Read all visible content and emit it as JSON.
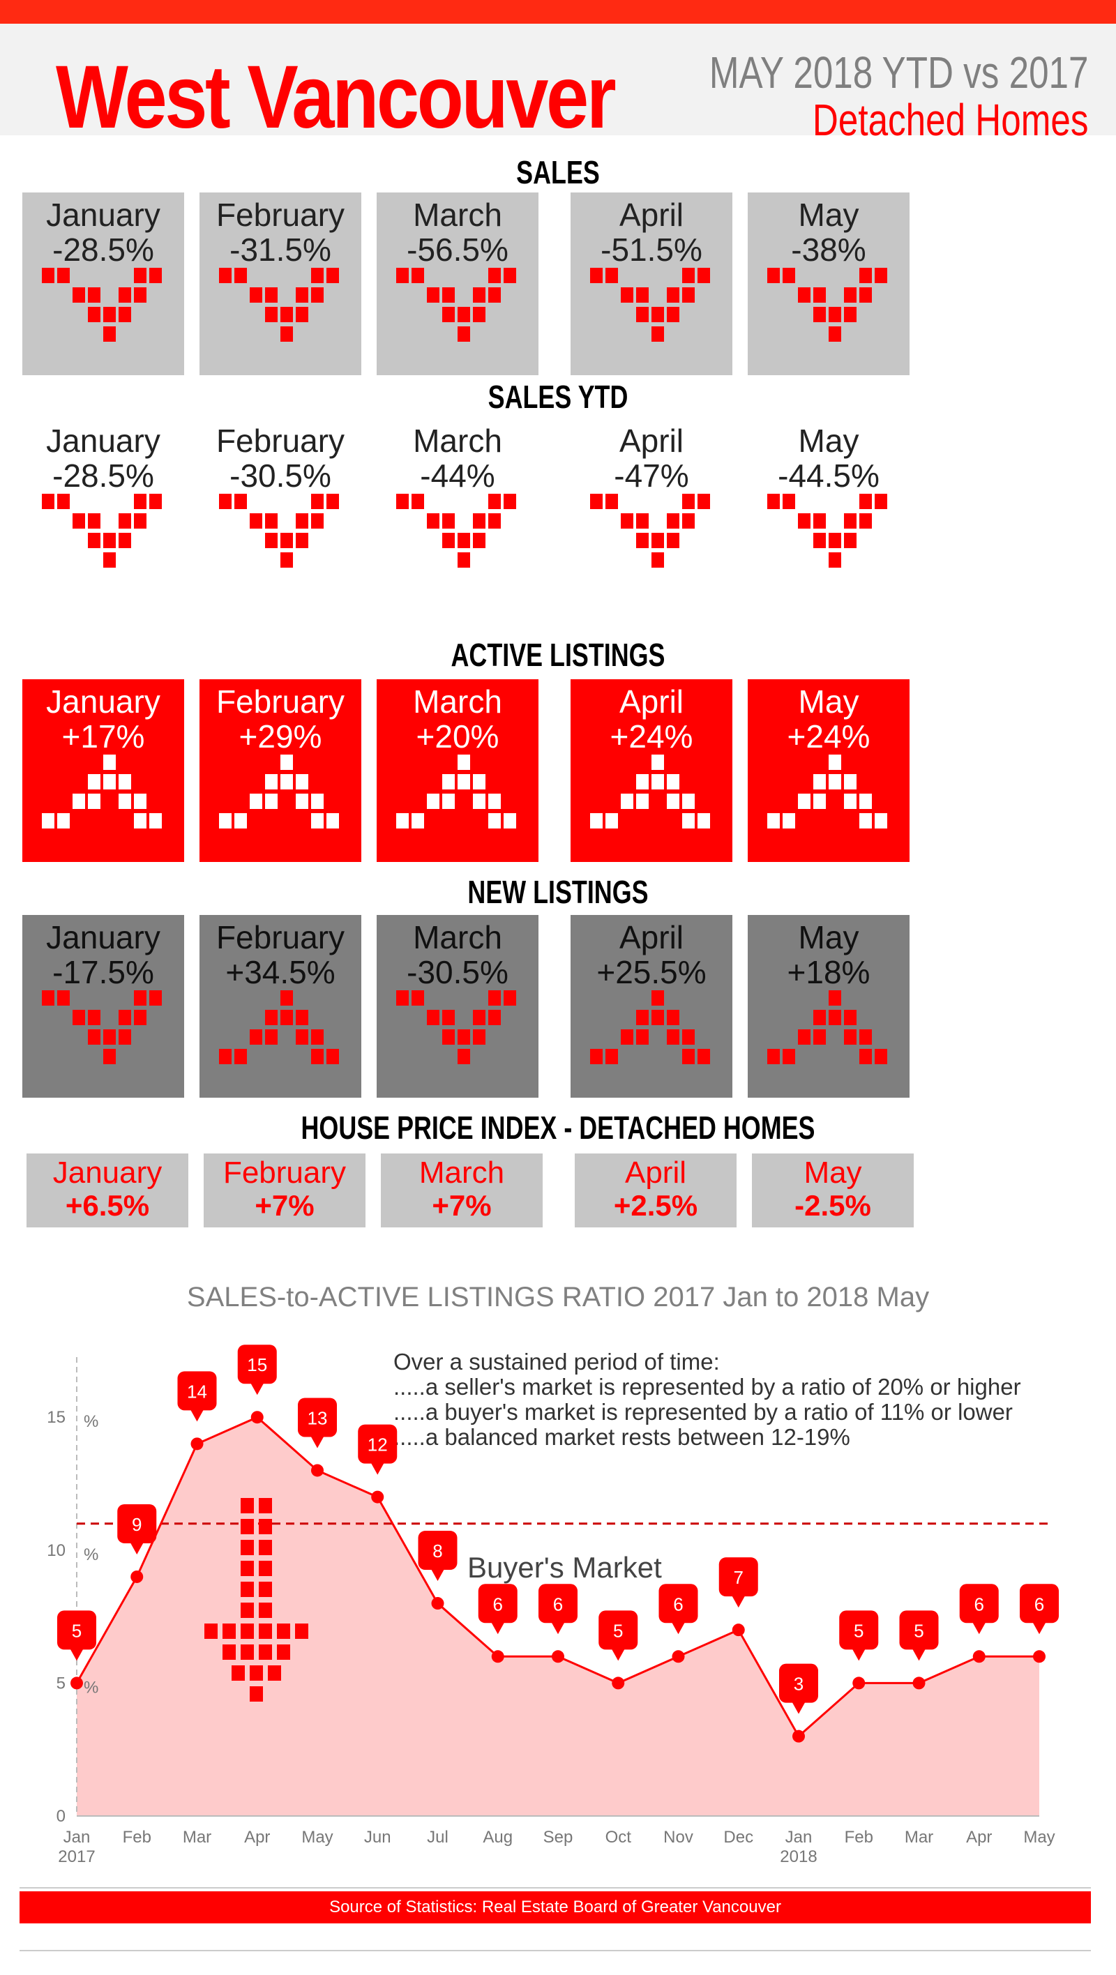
{
  "header": {
    "title": "West Vancouver",
    "subtitle_period": "MAY 2018 YTD vs 2017",
    "subtitle_type": "Detached Homes"
  },
  "colors": {
    "red": "#ff0000",
    "light_gray": "#c6c6c6",
    "dark_gray": "#7f7f7f",
    "pink_area": "#fecbcb"
  },
  "sections": {
    "sales": {
      "title": "SALES",
      "items": [
        {
          "month": "January",
          "value": "-28.5%",
          "trend": "down"
        },
        {
          "month": "February",
          "value": "-31.5%",
          "trend": "down"
        },
        {
          "month": "March",
          "value": "-56.5%",
          "trend": "down"
        },
        {
          "month": "April",
          "value": "-51.5%",
          "trend": "down"
        },
        {
          "month": "May",
          "value": "-38%",
          "trend": "down"
        }
      ]
    },
    "sales_ytd": {
      "title": "SALES YTD",
      "items": [
        {
          "month": "January",
          "value": "-28.5%",
          "trend": "down"
        },
        {
          "month": "February",
          "value": "-30.5%",
          "trend": "down"
        },
        {
          "month": "March",
          "value": "-44%",
          "trend": "down"
        },
        {
          "month": "April",
          "value": "-47%",
          "trend": "down"
        },
        {
          "month": "May",
          "value": "-44.5%",
          "trend": "down"
        }
      ]
    },
    "active_listings": {
      "title": "ACTIVE LISTINGS",
      "items": [
        {
          "month": "January",
          "value": "+17%",
          "trend": "up"
        },
        {
          "month": "February",
          "value": "+29%",
          "trend": "up"
        },
        {
          "month": "March",
          "value": "+20%",
          "trend": "up"
        },
        {
          "month": "April",
          "value": "+24%",
          "trend": "up"
        },
        {
          "month": "May",
          "value": "+24%",
          "trend": "up"
        }
      ]
    },
    "new_listings": {
      "title": "NEW LISTINGS",
      "items": [
        {
          "month": "January",
          "value": "-17.5%",
          "trend": "down"
        },
        {
          "month": "February",
          "value": "+34.5%",
          "trend": "up"
        },
        {
          "month": "March",
          "value": "-30.5%",
          "trend": "down"
        },
        {
          "month": "April",
          "value": "+25.5%",
          "trend": "up"
        },
        {
          "month": "May",
          "value": "+18%",
          "trend": "up"
        }
      ]
    },
    "hpi": {
      "title": "HOUSE PRICE INDEX - DETACHED HOMES",
      "items": [
        {
          "month": "January",
          "value": "+6.5%"
        },
        {
          "month": "February",
          "value": "+7%"
        },
        {
          "month": "March",
          "value": "+7%"
        },
        {
          "month": "April",
          "value": "+2.5%"
        },
        {
          "month": "May",
          "value": "-2.5%"
        }
      ]
    }
  },
  "chart_data": {
    "type": "area",
    "title": "SALES-to-ACTIVE LISTINGS RATIO 2017 Jan to 2018 May",
    "x": [
      "Jan",
      "Feb",
      "Mar",
      "Apr",
      "May",
      "Jun",
      "Jul",
      "Aug",
      "Sep",
      "Oct",
      "Nov",
      "Dec",
      "Jan",
      "Feb",
      "Mar",
      "Apr",
      "May"
    ],
    "year_labels": [
      "2017",
      "2018"
    ],
    "values": [
      5,
      9,
      14,
      15,
      13,
      12,
      8,
      6,
      6,
      5,
      6,
      7,
      3,
      5,
      5,
      6,
      6
    ],
    "ylim": [
      0,
      17
    ],
    "yticks": [
      "0",
      "5",
      "10",
      "15"
    ],
    "ytick_unit": "%",
    "reference_line": 11,
    "annotation": "Buyer's Market",
    "notes": [
      "Over a sustained period of time:",
      ".....a seller's market is represented by a ratio of 20% or higher",
      ".....a buyer's market is represented by a ratio of 11% or lower",
      ".....a balanced market rests between 12-19%"
    ]
  },
  "footer": "Source of Statistics: Real Estate Board of Greater Vancouver"
}
